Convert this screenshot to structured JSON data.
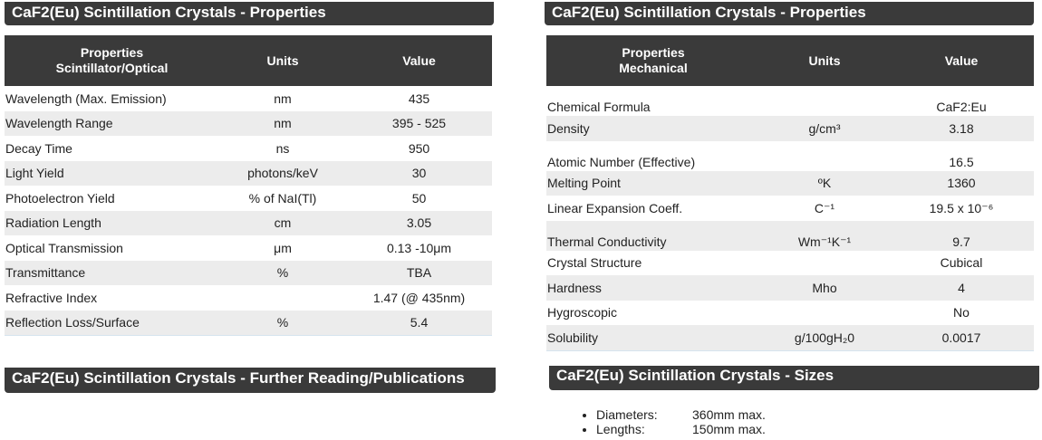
{
  "left_section": {
    "title": "CaF2(Eu) Scintillation Crystals - Properties",
    "headers": {
      "col1_line1": "Properties",
      "col1_line2": "Scintillator/Optical",
      "col2": "Units",
      "col3": "Value"
    },
    "rows": [
      {
        "property": "Wavelength (Max. Emission)",
        "units": "nm",
        "value": "435"
      },
      {
        "property": "Wavelength Range",
        "units": "nm",
        "value": "395 - 525"
      },
      {
        "property": "Decay Time",
        "units": "ns",
        "value": "950"
      },
      {
        "property": "Light Yield",
        "units": "photons/keV",
        "value": "30"
      },
      {
        "property": "Photoelectron Yield",
        "units": "% of NaI(Tl)",
        "value": "50"
      },
      {
        "property": "Radiation Length",
        "units": "cm",
        "value": "3.05"
      },
      {
        "property": "Optical Transmission",
        "units": "μm",
        "value": "0.13 -10μm"
      },
      {
        "property": "Transmittance",
        "units": "%",
        "value": "TBA"
      },
      {
        "property": "Refractive Index",
        "units": "",
        "value": "1.47 (@ 435nm)"
      },
      {
        "property": "Reflection Loss/Surface",
        "units": "%",
        "value": "5.4"
      }
    ]
  },
  "right_section": {
    "title": "CaF2(Eu) Scintillation Crystals - Properties",
    "headers": {
      "col1_line1": "Properties",
      "col1_line2": "Mechanical",
      "col2": "Units",
      "col3": "Value"
    },
    "rows": [
      {
        "property": "Chemical Formula",
        "units": "",
        "value": "CaF2:Eu"
      },
      {
        "property": "Density",
        "units": "g/cm³",
        "value": "3.18"
      },
      {
        "property": "Atomic Number (Effective)",
        "units": "",
        "value": "16.5"
      },
      {
        "property": "Melting Point",
        "units": "ºK",
        "value": "1360"
      },
      {
        "property": "Linear Expansion Coeff.",
        "units": "C⁻¹",
        "value": "19.5 x 10⁻⁶"
      },
      {
        "property": "Thermal Conductivity",
        "units": "Wm⁻¹K⁻¹",
        "value": "9.7"
      },
      {
        "property": "Crystal Structure",
        "units": "",
        "value": "Cubical"
      },
      {
        "property": "Hardness",
        "units": "Mho",
        "value": "4"
      },
      {
        "property": "Hygroscopic",
        "units": "",
        "value": "No"
      },
      {
        "property": "Solubility",
        "units": "g/100gH₂0",
        "value": "0.0017"
      }
    ]
  },
  "reading_section": {
    "title": "CaF2(Eu) Scintillation Crystals - Further Reading/Publications"
  },
  "sizes_section": {
    "title": "CaF2(Eu) Scintillation Crystals - Sizes",
    "items": [
      {
        "label": "Diameters:",
        "value": "360mm max."
      },
      {
        "label": "Lengths:",
        "value": "150mm max."
      }
    ]
  }
}
